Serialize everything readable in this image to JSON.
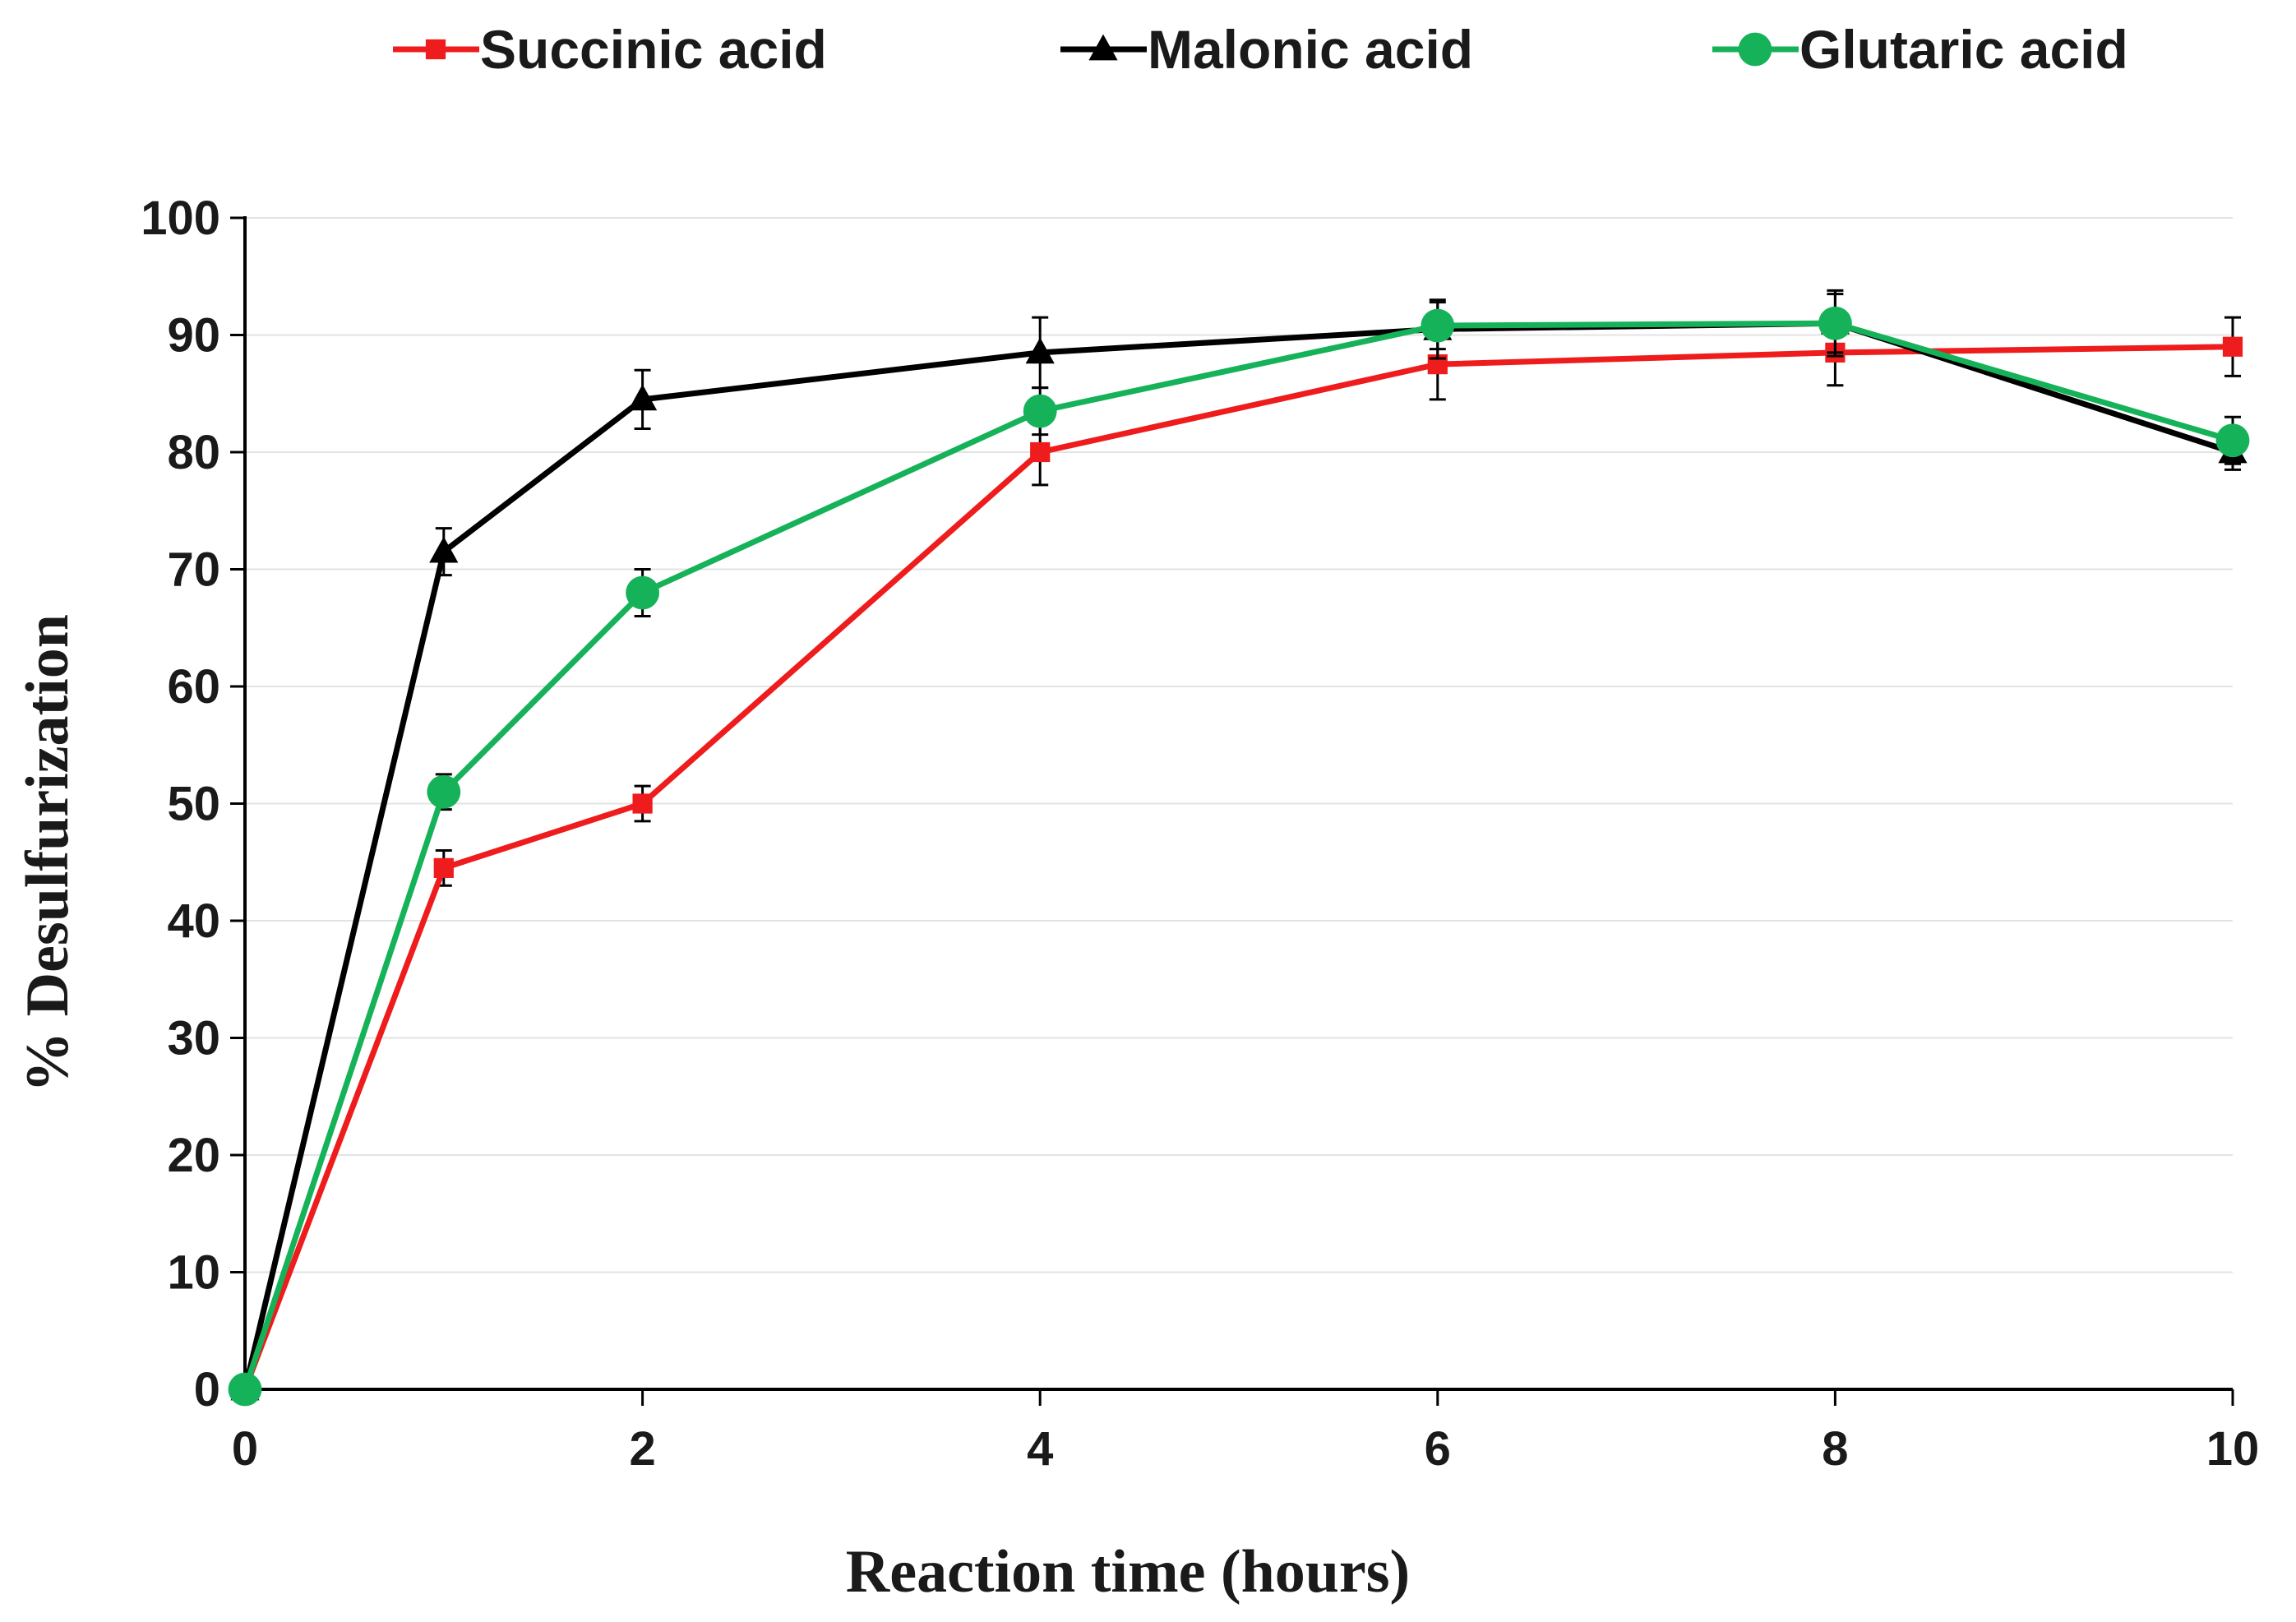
{
  "chart_data": {
    "type": "line",
    "title": "",
    "xlabel": "Reaction time (hours)",
    "ylabel": "% Desulfurization",
    "xlim": [
      0,
      10
    ],
    "ylim": [
      0,
      100
    ],
    "xticks": [
      0,
      2,
      4,
      6,
      8,
      10
    ],
    "yticks": [
      0,
      10,
      20,
      30,
      40,
      50,
      60,
      70,
      80,
      90,
      100
    ],
    "grid": "horizontal",
    "legend_position": "top",
    "x": [
      0,
      1,
      2,
      4,
      6,
      8,
      10
    ],
    "series": [
      {
        "name": "Succinic acid",
        "marker": "square",
        "color": "#ee1c1c",
        "values": [
          0,
          44.5,
          50,
          80,
          87.5,
          88.5,
          89
        ],
        "errors": [
          0,
          1.5,
          1.5,
          2.8,
          3,
          2.8,
          2.5
        ]
      },
      {
        "name": "Malonic acid",
        "marker": "triangle",
        "color": "#000000",
        "values": [
          0,
          71.5,
          84.5,
          88.5,
          90.5,
          91,
          80
        ],
        "errors": [
          0,
          2,
          2.5,
          3,
          2.5,
          2.8,
          1.5
        ]
      },
      {
        "name": "Glutaric acid",
        "marker": "circle",
        "color": "#16b25a",
        "values": [
          0,
          51,
          68,
          83.5,
          90.8,
          91,
          81
        ],
        "errors": [
          0,
          1.5,
          2,
          2,
          2,
          2.5,
          2
        ]
      }
    ]
  }
}
